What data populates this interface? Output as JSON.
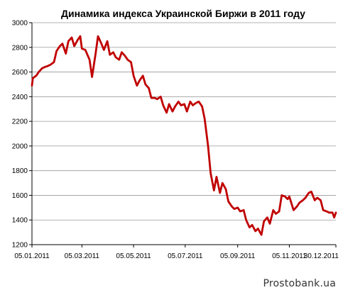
{
  "chart_data": {
    "type": "line",
    "title": "Динамика индекса Украинской Биржи в 2011  году",
    "xlabel": "",
    "ylabel": "",
    "ylim": [
      1200,
      3000
    ],
    "yticks": [
      1200,
      1400,
      1600,
      1800,
      2000,
      2200,
      2400,
      2600,
      2800,
      3000
    ],
    "xlim": [
      "2011-01-05",
      "2011-12-30"
    ],
    "xticks": [
      "05.01.2011",
      "05.03.2011",
      "05.05.2011",
      "05.07.2011",
      "05.09.2011",
      "05.11.2011",
      "30.12.2011"
    ],
    "grid": true,
    "line_color": "#c00000",
    "series": [
      {
        "x": [
          "2011-01-05",
          "2011-01-06",
          "2011-01-10",
          "2011-01-13",
          "2011-01-17",
          "2011-01-20",
          "2011-01-24",
          "2011-01-27",
          "2011-01-31",
          "2011-02-03",
          "2011-02-07",
          "2011-02-10",
          "2011-02-14",
          "2011-02-17",
          "2011-02-21",
          "2011-02-24",
          "2011-02-28",
          "2011-03-03",
          "2011-03-05",
          "2011-03-09",
          "2011-03-14",
          "2011-03-17",
          "2011-03-21",
          "2011-03-24",
          "2011-03-28",
          "2011-03-31",
          "2011-04-04",
          "2011-04-07",
          "2011-04-11",
          "2011-04-14",
          "2011-04-18",
          "2011-04-21",
          "2011-04-25",
          "2011-04-28",
          "2011-05-02",
          "2011-05-05",
          "2011-05-09",
          "2011-05-12",
          "2011-05-16",
          "2011-05-19",
          "2011-05-23",
          "2011-05-26",
          "2011-05-30",
          "2011-06-02",
          "2011-06-06",
          "2011-06-09",
          "2011-06-13",
          "2011-06-16",
          "2011-06-20",
          "2011-06-23",
          "2011-06-27",
          "2011-06-30",
          "2011-07-04",
          "2011-07-07",
          "2011-07-11",
          "2011-07-14",
          "2011-07-18",
          "2011-07-21",
          "2011-07-25",
          "2011-07-28",
          "2011-08-01",
          "2011-08-04",
          "2011-08-08",
          "2011-08-11",
          "2011-08-15",
          "2011-08-18",
          "2011-08-22",
          "2011-08-25",
          "2011-08-29",
          "2011-09-01",
          "2011-09-05",
          "2011-09-08",
          "2011-09-12",
          "2011-09-15",
          "2011-09-19",
          "2011-09-22",
          "2011-09-26",
          "2011-09-29",
          "2011-10-03",
          "2011-10-06",
          "2011-10-10",
          "2011-10-13",
          "2011-10-17",
          "2011-10-20",
          "2011-10-24",
          "2011-10-27",
          "2011-10-31",
          "2011-11-03",
          "2011-11-05",
          "2011-11-10",
          "2011-11-14",
          "2011-11-17",
          "2011-11-21",
          "2011-11-24",
          "2011-11-28",
          "2011-12-01",
          "2011-12-05",
          "2011-12-08",
          "2011-12-12",
          "2011-12-15",
          "2011-12-19",
          "2011-12-22",
          "2011-12-26",
          "2011-12-28",
          "2011-12-30"
        ],
        "y": [
          2490,
          2550,
          2570,
          2600,
          2630,
          2640,
          2650,
          2660,
          2680,
          2770,
          2810,
          2830,
          2750,
          2850,
          2880,
          2810,
          2860,
          2890,
          2790,
          2780,
          2700,
          2560,
          2740,
          2890,
          2830,
          2780,
          2850,
          2740,
          2760,
          2720,
          2700,
          2760,
          2730,
          2700,
          2680,
          2570,
          2490,
          2530,
          2570,
          2500,
          2470,
          2390,
          2390,
          2380,
          2400,
          2330,
          2270,
          2340,
          2280,
          2320,
          2360,
          2330,
          2340,
          2280,
          2360,
          2330,
          2350,
          2360,
          2320,
          2220,
          2000,
          1780,
          1640,
          1750,
          1620,
          1700,
          1650,
          1550,
          1510,
          1490,
          1500,
          1470,
          1480,
          1400,
          1340,
          1360,
          1310,
          1330,
          1280,
          1390,
          1420,
          1370,
          1480,
          1450,
          1470,
          1600,
          1590,
          1570,
          1590,
          1480,
          1510,
          1540,
          1560,
          1580,
          1620,
          1630,
          1560,
          1580,
          1560,
          1480,
          1470,
          1460,
          1460,
          1420,
          1460
        ]
      }
    ]
  },
  "watermark": {
    "text": "Prostobank.ua"
  }
}
